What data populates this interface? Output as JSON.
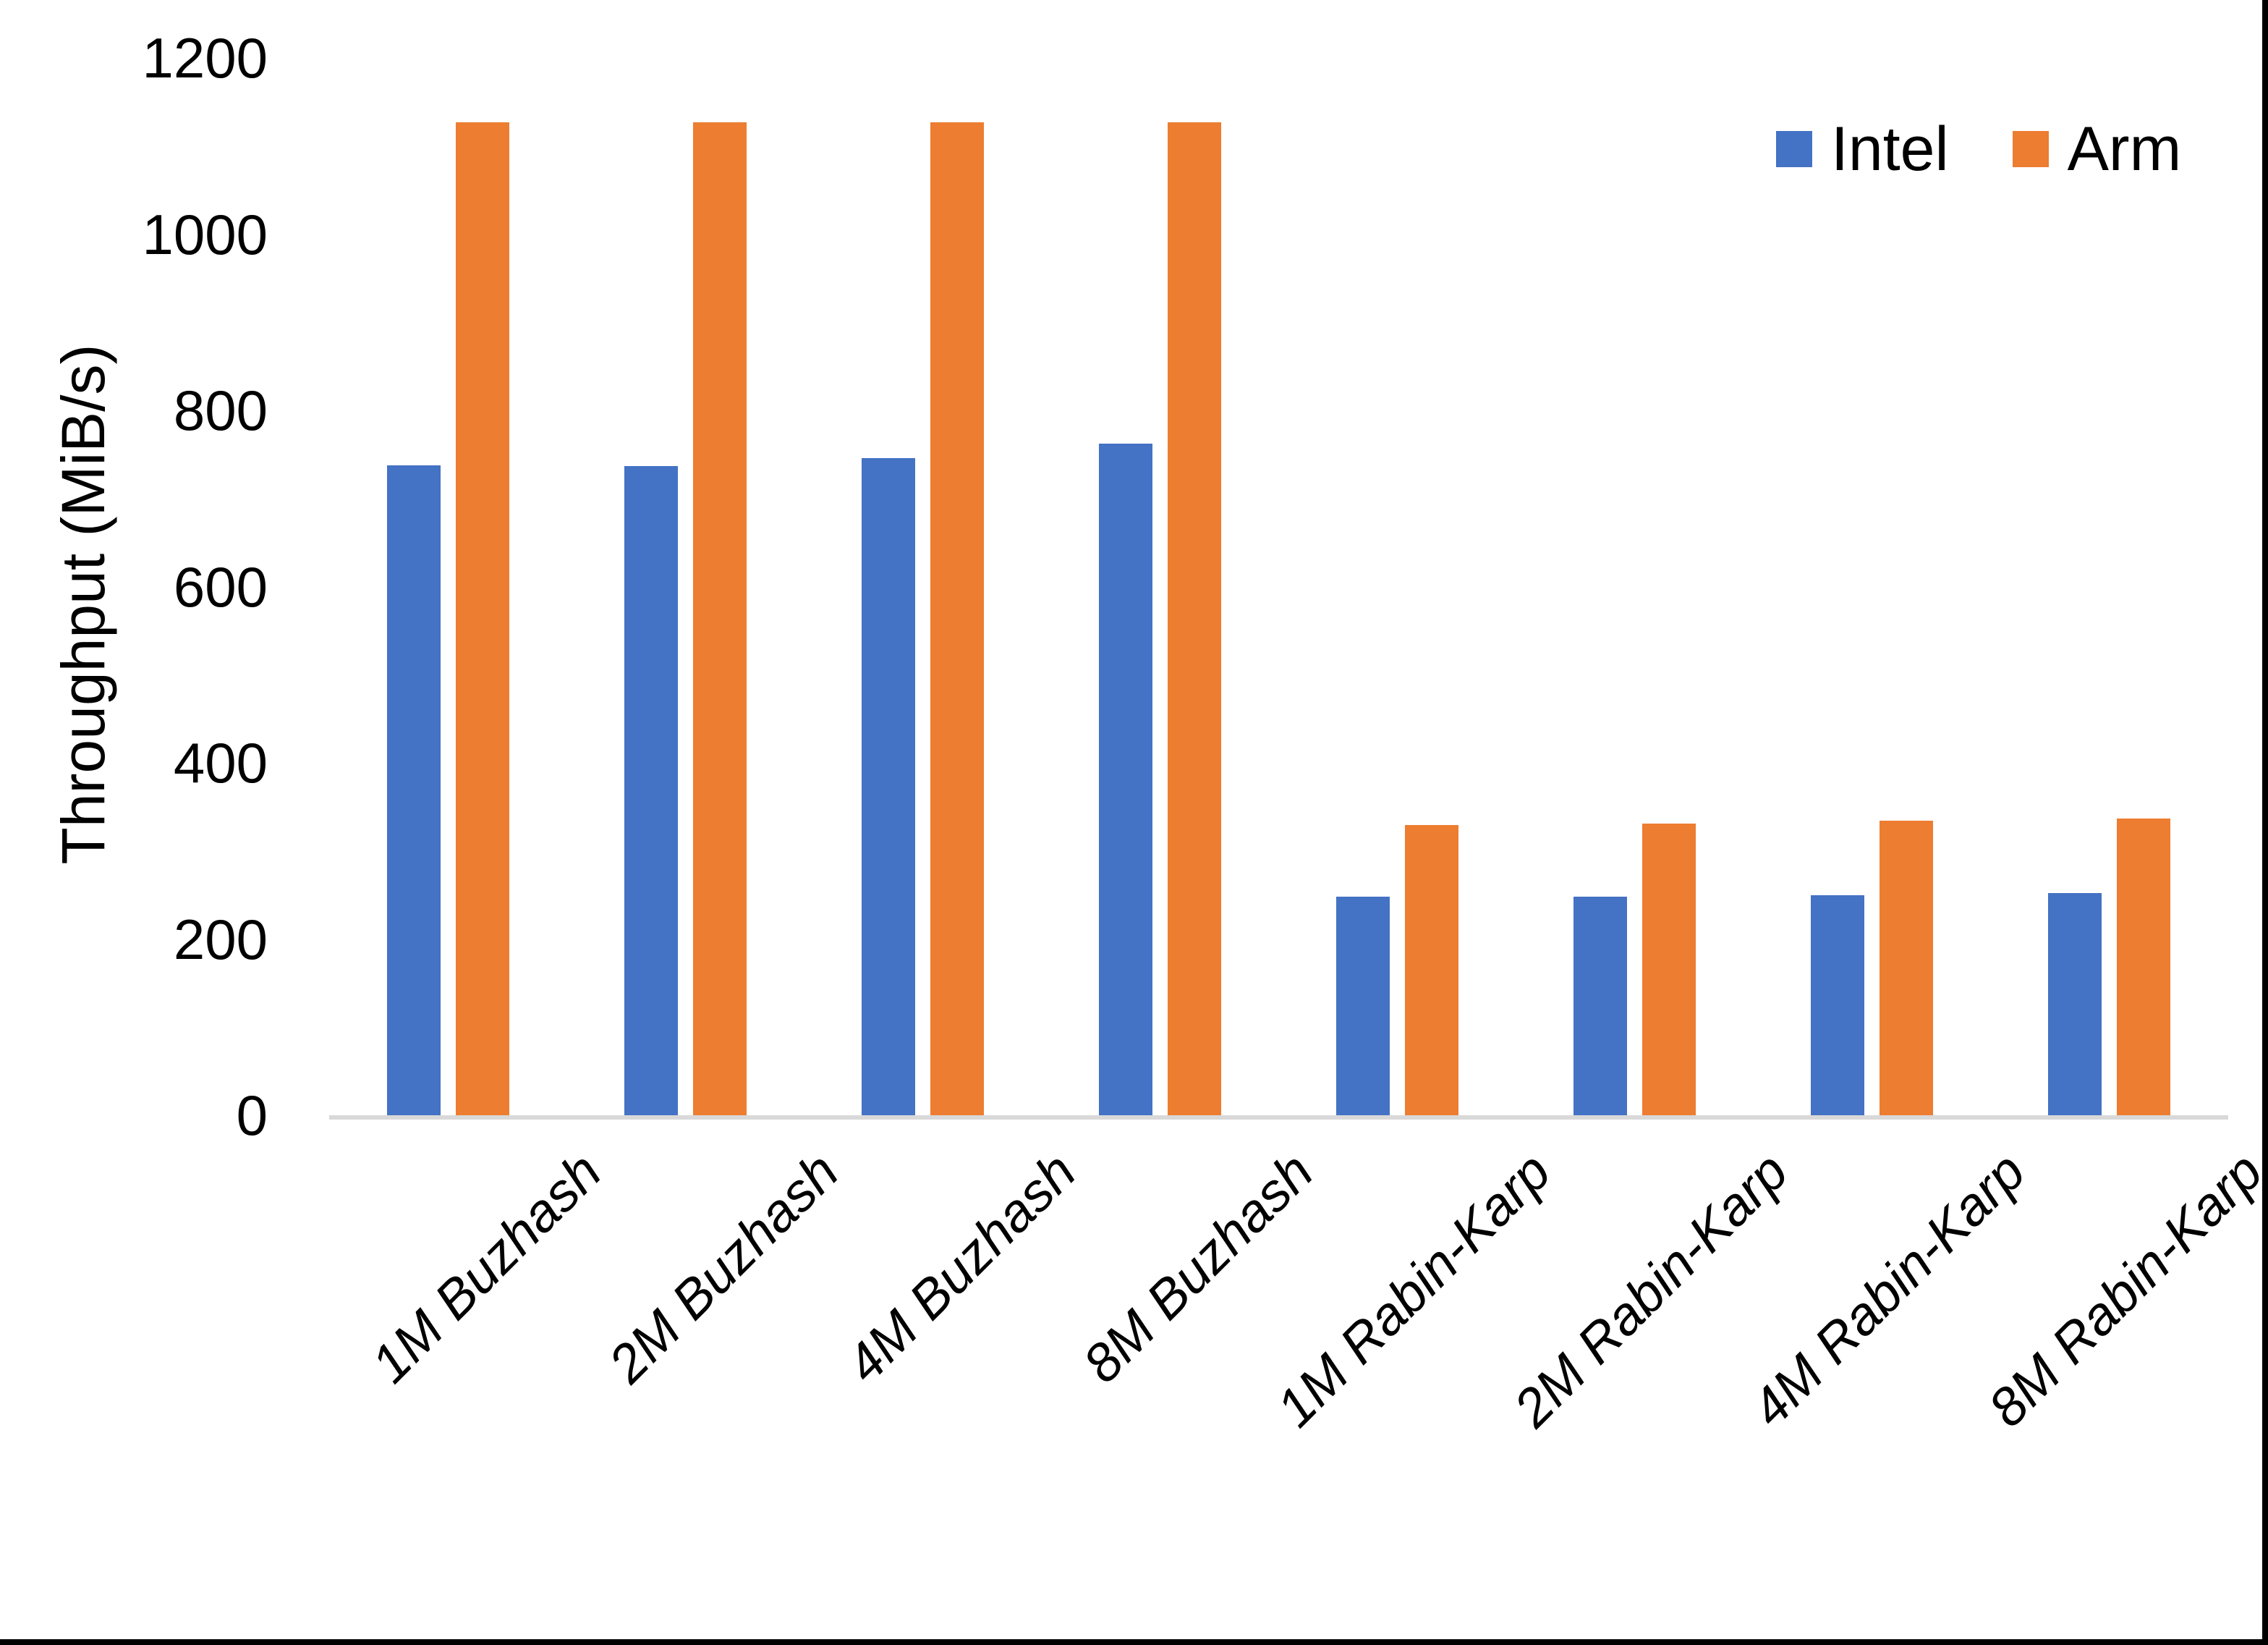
{
  "chart_data": {
    "type": "bar",
    "title": "",
    "xlabel": "",
    "ylabel": "Throughput (MiB/s)",
    "categories": [
      "1M Buzhash",
      "2M Buzhash",
      "4M Buzhash",
      "8M Buzhash",
      "1M Rabin-Karp",
      "2M Rabin-Karp",
      "4M Rabin-Karp",
      "8M Rabin-Karp"
    ],
    "series": [
      {
        "name": "Intel",
        "color": "#4472C4",
        "values": [
          738,
          737,
          746,
          762,
          248,
          248,
          250,
          252
        ]
      },
      {
        "name": "Arm",
        "color": "#ED7D31",
        "values": [
          1127,
          1127,
          1127,
          1127,
          329,
          331,
          334,
          337
        ]
      }
    ],
    "ylim": [
      0,
      1200
    ],
    "yticks": [
      0,
      200,
      400,
      600,
      800,
      1000,
      1200
    ],
    "grid": "off",
    "legend_position": "top-right",
    "xlabel_rotation_deg": 45,
    "xlabel_style": "italic"
  },
  "colors": {
    "background": "#FFFFFF",
    "axis_line": "#D9D9D9",
    "text": "#000000",
    "edge_border": "#000000"
  }
}
